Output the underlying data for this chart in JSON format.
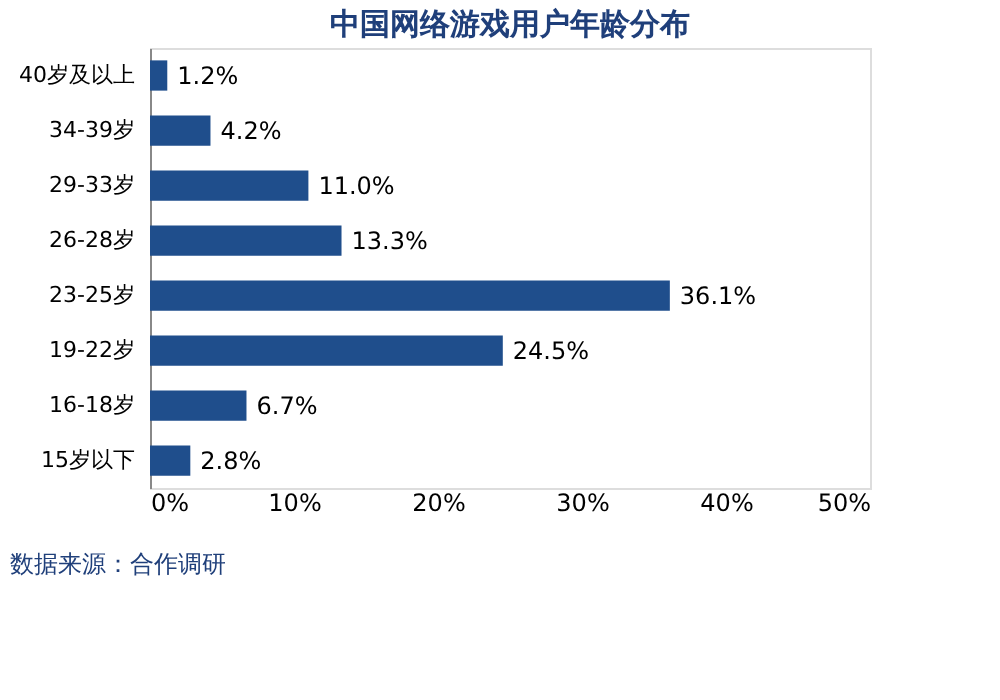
{
  "chart_data": {
    "type": "bar",
    "orientation": "horizontal",
    "title": "中国网络游戏用户年龄分布",
    "categories": [
      "40岁及以上",
      "34-39岁",
      "29-33岁",
      "26-28岁",
      "23-25岁",
      "19-22岁",
      "16-18岁",
      "15岁以下"
    ],
    "values": [
      1.2,
      4.2,
      11.0,
      13.3,
      36.1,
      24.5,
      6.7,
      2.8
    ],
    "value_labels": [
      "1.2%",
      "4.2%",
      "11.0%",
      "13.3%",
      "36.1%",
      "24.5%",
      "6.7%",
      "2.8%"
    ],
    "color": "#1f4e8c",
    "xlim": [
      0,
      50
    ],
    "xticks": [
      {
        "value": 0,
        "label": "0%"
      },
      {
        "value": 10,
        "label": "10%"
      },
      {
        "value": 20,
        "label": "20%"
      },
      {
        "value": 30,
        "label": "30%"
      },
      {
        "value": 40,
        "label": "40%"
      },
      {
        "value": 50,
        "label": "50%"
      }
    ],
    "grid": false,
    "annotations": [
      "数据来源：合作调研"
    ]
  }
}
